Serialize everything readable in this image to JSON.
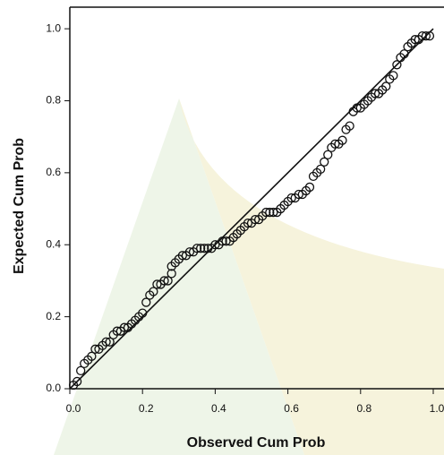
{
  "chart_data": {
    "type": "scatter",
    "x_label": "Observed Cum Prob",
    "y_label": "Expected Cum Prob",
    "xlim": [
      0,
      1.03
    ],
    "ylim": [
      0,
      1.06
    ],
    "xticks": [
      {
        "value": 0,
        "label": "0.0"
      },
      0.2,
      0.4,
      0.6,
      0.8,
      {
        "value": 1,
        "label": "1.0"
      }
    ],
    "yticks": [
      {
        "value": 0,
        "label": "0.0"
      },
      0.2,
      0.4,
      0.6,
      0.8,
      {
        "value": 1,
        "label": "1.0"
      }
    ],
    "reference_line": {
      "x": [
        0,
        1
      ],
      "y": [
        0,
        1
      ]
    },
    "color": "#111111",
    "x": [
      0.01,
      0.02,
      0.03,
      0.04,
      0.05,
      0.06,
      0.07,
      0.08,
      0.09,
      0.1,
      0.11,
      0.12,
      0.13,
      0.14,
      0.15,
      0.16,
      0.17,
      0.18,
      0.19,
      0.2,
      0.21,
      0.22,
      0.23,
      0.24,
      0.25,
      0.26,
      0.27,
      0.28,
      0.28,
      0.29,
      0.3,
      0.31,
      0.32,
      0.33,
      0.34,
      0.35,
      0.36,
      0.37,
      0.38,
      0.39,
      0.4,
      0.41,
      0.42,
      0.43,
      0.44,
      0.45,
      0.46,
      0.47,
      0.48,
      0.49,
      0.5,
      0.51,
      0.52,
      0.53,
      0.54,
      0.55,
      0.56,
      0.57,
      0.58,
      0.59,
      0.6,
      0.61,
      0.62,
      0.63,
      0.64,
      0.65,
      0.66,
      0.67,
      0.68,
      0.69,
      0.7,
      0.71,
      0.72,
      0.73,
      0.74,
      0.75,
      0.76,
      0.77,
      0.78,
      0.79,
      0.8,
      0.81,
      0.82,
      0.83,
      0.84,
      0.85,
      0.86,
      0.87,
      0.88,
      0.89,
      0.9,
      0.91,
      0.92,
      0.93,
      0.94,
      0.95,
      0.96,
      0.97,
      0.98,
      0.99
    ],
    "y": [
      0.01,
      0.02,
      0.05,
      0.07,
      0.08,
      0.09,
      0.11,
      0.11,
      0.12,
      0.13,
      0.13,
      0.15,
      0.16,
      0.16,
      0.17,
      0.17,
      0.18,
      0.19,
      0.2,
      0.21,
      0.24,
      0.26,
      0.27,
      0.29,
      0.29,
      0.3,
      0.3,
      0.32,
      0.34,
      0.35,
      0.36,
      0.37,
      0.37,
      0.38,
      0.38,
      0.39,
      0.39,
      0.39,
      0.39,
      0.39,
      0.4,
      0.4,
      0.41,
      0.41,
      0.41,
      0.42,
      0.43,
      0.44,
      0.45,
      0.46,
      0.46,
      0.47,
      0.47,
      0.48,
      0.49,
      0.49,
      0.49,
      0.49,
      0.5,
      0.51,
      0.52,
      0.53,
      0.53,
      0.54,
      0.54,
      0.55,
      0.56,
      0.59,
      0.6,
      0.61,
      0.63,
      0.65,
      0.67,
      0.68,
      0.68,
      0.69,
      0.72,
      0.73,
      0.77,
      0.78,
      0.78,
      0.79,
      0.8,
      0.81,
      0.82,
      0.82,
      0.83,
      0.84,
      0.86,
      0.87,
      0.9,
      0.92,
      0.93,
      0.95,
      0.96,
      0.97,
      0.97,
      0.98,
      0.98,
      0.98
    ]
  }
}
